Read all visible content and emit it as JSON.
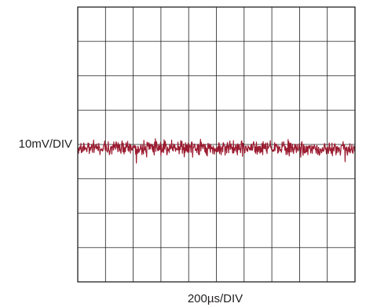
{
  "chart_data": {
    "type": "line",
    "title": "",
    "ylabel": "10mV/DIV",
    "xlabel": "200µs/DIV",
    "x_divisions": 10,
    "y_divisions": 8,
    "grid": true,
    "trace_color": "#9b1b30",
    "grid_color": "#231f20",
    "series": [
      {
        "baseline_div": 4.1,
        "noise_pk_pk_div": 0.6
      }
    ]
  }
}
